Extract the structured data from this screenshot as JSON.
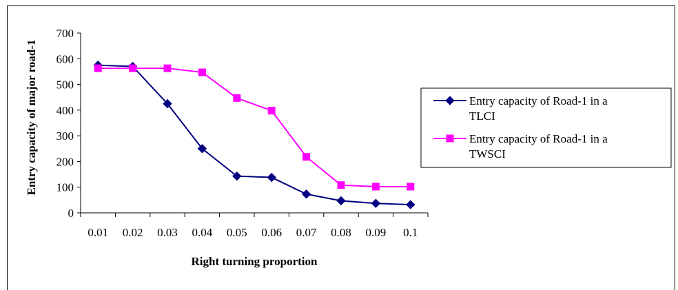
{
  "chart_data": {
    "type": "line",
    "categories": [
      "0.01",
      "0.02",
      "0.03",
      "0.04",
      "0.05",
      "0.06",
      "0.07",
      "0.08",
      "0.09",
      "0.1"
    ],
    "series": [
      {
        "name": "Entry capacity of Road-1 in a TLCI",
        "name_lines": [
          "Entry capacity of Road-1 in a",
          "TLCI"
        ],
        "color": "#000080",
        "marker": "diamond",
        "values": [
          575,
          570,
          425,
          250,
          143,
          138,
          73,
          47,
          37,
          32
        ]
      },
      {
        "name": "Entry capacity of Road-1 in a TWSCI",
        "name_lines": [
          "Entry capacity of Road-1 in a",
          "TWSCI"
        ],
        "color": "#ff00ff",
        "marker": "square",
        "values": [
          563,
          563,
          563,
          547,
          447,
          398,
          218,
          108,
          102,
          102
        ]
      }
    ],
    "xlabel": "Right turning proportion",
    "ylabel": "Entry capacity of major road-1",
    "ylim": [
      0,
      700
    ],
    "yticks": [
      "0",
      "100",
      "200",
      "300",
      "400",
      "500",
      "600",
      "700"
    ],
    "grid": false,
    "legend_position": "right"
  }
}
